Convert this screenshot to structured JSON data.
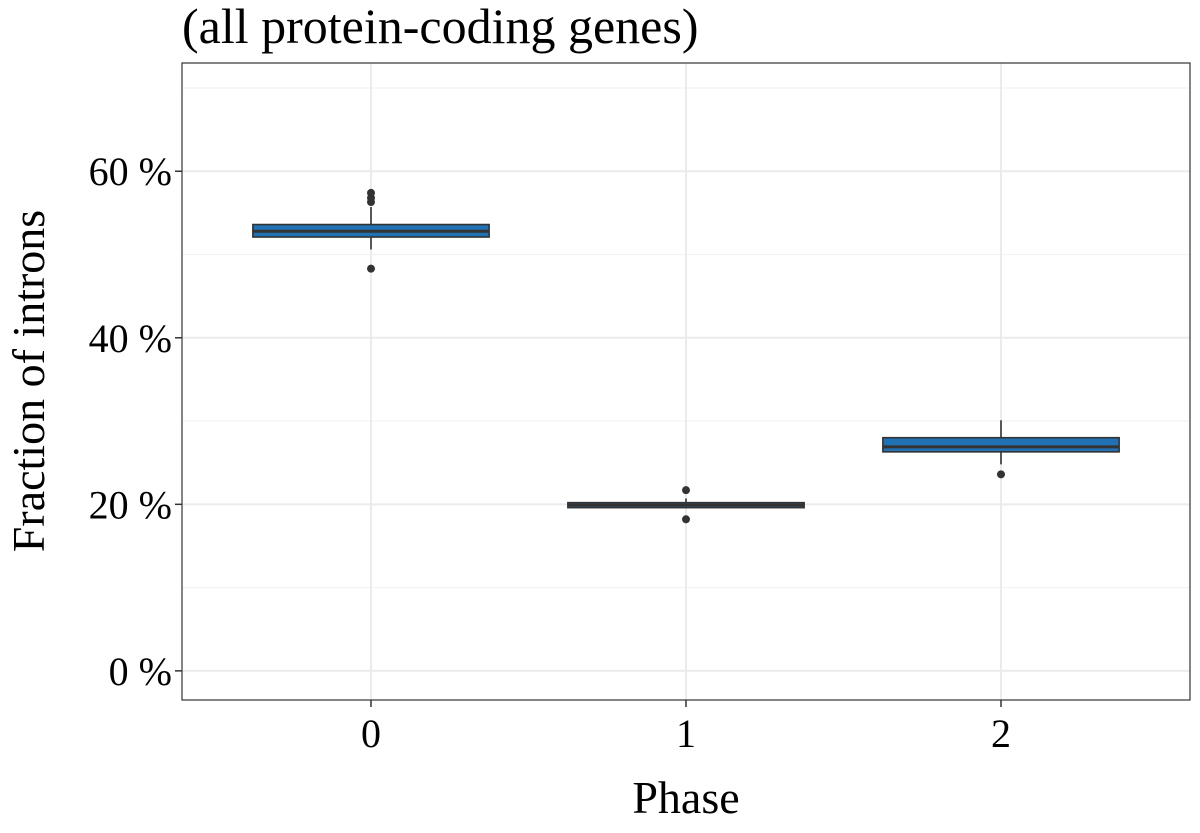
{
  "chart_data": {
    "type": "box",
    "title": "(all protein-coding genes)",
    "xlabel": "Phase",
    "ylabel": "Fraction of introns",
    "categories": [
      "0",
      "1",
      "2"
    ],
    "y_unit": "%",
    "ylim": [
      -3.5,
      73
    ],
    "y_ticks": [
      0,
      20,
      40,
      60
    ],
    "y_tick_labels": [
      "0 %",
      "20 %",
      "40 %",
      "60 %"
    ],
    "grid": true,
    "fill_color": "#2171b5",
    "series": [
      {
        "category": "0",
        "whisker_low": 50.6,
        "q1": 52.1,
        "median": 52.8,
        "q3": 53.6,
        "whisker_high": 55.7,
        "outliers": [
          48.3,
          56.3,
          56.8,
          57.4
        ]
      },
      {
        "category": "1",
        "whisker_low": 19.5,
        "q1": 19.6,
        "median": 19.9,
        "q3": 20.2,
        "whisker_high": 20.7,
        "outliers": [
          18.2,
          21.7
        ]
      },
      {
        "category": "2",
        "whisker_low": 24.8,
        "q1": 26.3,
        "median": 26.9,
        "q3": 28.0,
        "whisker_high": 30.1,
        "outliers": [
          23.6
        ]
      }
    ]
  }
}
